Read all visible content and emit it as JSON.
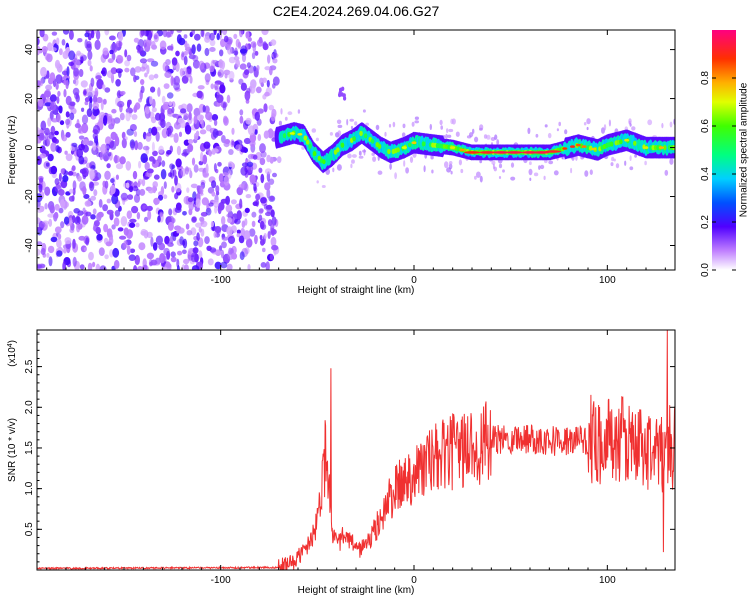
{
  "title": "C2E4.2024.269.04.06.G27",
  "chart_data": [
    {
      "type": "heatmap",
      "xlabel": "Height of straight line (km)",
      "ylabel": "Frequency (Hz)",
      "xlim": [
        -195,
        135
      ],
      "ylim": [
        -50,
        48
      ],
      "xticks": [
        -100,
        0,
        100
      ],
      "yticks": [
        -40,
        -20,
        0,
        20,
        40
      ],
      "noise_region_x": [
        -195,
        -71
      ],
      "ridge": {
        "x": [
          -71,
          -62,
          -57,
          -52,
          -47,
          -42,
          -37,
          -32,
          -27,
          -22,
          -17,
          -12,
          -5,
          0,
          10,
          20,
          30,
          40,
          50,
          60,
          70,
          80,
          85,
          90,
          95,
          100,
          110,
          120,
          135
        ],
        "y": [
          4,
          6,
          5,
          -2,
          -6,
          -3,
          1,
          3,
          6,
          3,
          0,
          -2,
          0,
          2,
          1,
          0,
          -2,
          -2,
          -2,
          -2,
          -2,
          0,
          1,
          0,
          -1,
          1,
          3,
          0,
          0
        ]
      },
      "colorbar": {
        "label": "Normalized spectral amplitude",
        "range": [
          0.0,
          1.0
        ],
        "ticks": [
          0.0,
          0.2,
          0.4,
          0.6,
          0.8
        ],
        "tick_labels": [
          "0.0",
          "0.2",
          "0.4",
          "0.6",
          "0.8"
        ]
      }
    },
    {
      "type": "line",
      "xlabel": "Height of straight line (km)",
      "ylabel": "SNR (10 * v/v)",
      "y_scale_label": "(x10",
      "y_scale_exp": "4",
      "y_scale_close": ")",
      "xlim": [
        -195,
        135
      ],
      "ylim": [
        0,
        2.95
      ],
      "xticks": [
        -100,
        0,
        100
      ],
      "yticks": [
        0.5,
        1.0,
        1.5,
        2.0,
        2.5
      ],
      "ytick_labels": [
        "0.5",
        "1.0",
        "1.5",
        "2.0",
        "2.5"
      ],
      "series_color": "#f03030",
      "envelope": {
        "x": [
          -195,
          -70,
          -62,
          -55,
          -50,
          -47,
          -45,
          -43,
          -40,
          -37,
          -33,
          -28,
          -22,
          -18,
          -12,
          -5,
          0,
          10,
          20,
          30,
          40,
          50,
          60,
          70,
          80,
          90,
          100,
          110,
          120,
          128,
          131,
          135
        ],
        "y": [
          0.02,
          0.03,
          0.1,
          0.3,
          0.6,
          1.3,
          1.5,
          0.6,
          0.3,
          0.4,
          0.35,
          0.25,
          0.4,
          0.6,
          0.9,
          1.1,
          1.2,
          1.35,
          1.45,
          1.52,
          1.58,
          1.62,
          1.62,
          1.6,
          1.58,
          1.6,
          1.6,
          1.58,
          1.5,
          1.4,
          1.55,
          1.5
        ]
      },
      "peaks": [
        {
          "x": -43,
          "y": 2.48
        },
        {
          "x": 131,
          "y": 2.95
        },
        {
          "x": 129,
          "y": 0.22
        }
      ]
    }
  ]
}
